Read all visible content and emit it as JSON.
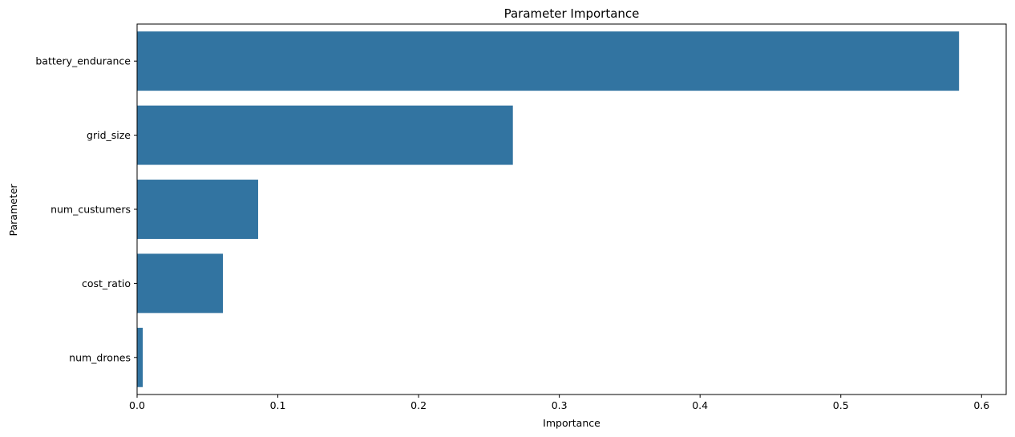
{
  "chart_data": {
    "type": "bar",
    "orientation": "horizontal",
    "title": "Parameter Importance",
    "xlabel": "Importance",
    "ylabel": "Parameter",
    "categories": [
      "battery_endurance",
      "grid_size",
      "num_custumers",
      "cost_ratio",
      "num_drones"
    ],
    "values": [
      0.584,
      0.267,
      0.086,
      0.061,
      0.004
    ],
    "xlim": [
      0,
      0.6175
    ],
    "xticks": [
      0.0,
      0.1,
      0.2,
      0.3,
      0.4,
      0.5,
      0.6
    ],
    "xtick_labels": [
      "0.0",
      "0.1",
      "0.2",
      "0.3",
      "0.4",
      "0.5",
      "0.6"
    ],
    "grid": false,
    "bar_color": "#3274a1"
  }
}
